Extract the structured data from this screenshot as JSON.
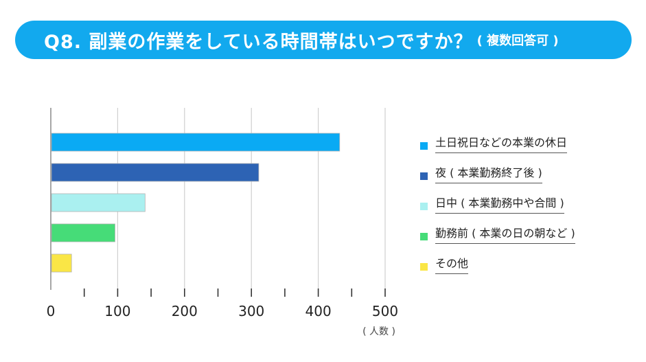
{
  "title": {
    "main": "Q8. 副業の作業をしている時間帯はいつですか？",
    "sub": "( 複数回答可 )"
  },
  "colors": {
    "banner": "#12a9ee",
    "series": [
      "#0aaaf4",
      "#2d63b4",
      "#aaf0f0",
      "#46dc78",
      "#fae646"
    ]
  },
  "chart_data": {
    "type": "bar",
    "orientation": "horizontal",
    "categories": [
      "土日祝日などの本業の休日",
      "夜 ( 本業勤務終了後 )",
      "日中 ( 本業勤務中や合間 )",
      "勤務前 ( 本業の日の朝など )",
      "その他"
    ],
    "values": [
      432,
      311,
      141,
      96,
      31
    ],
    "xlim": [
      0,
      500
    ],
    "xticks": [
      "0",
      "100",
      "200",
      "300",
      "400",
      "500"
    ],
    "xlabel": "( 人数 )",
    "grid": true,
    "legend": "right"
  }
}
